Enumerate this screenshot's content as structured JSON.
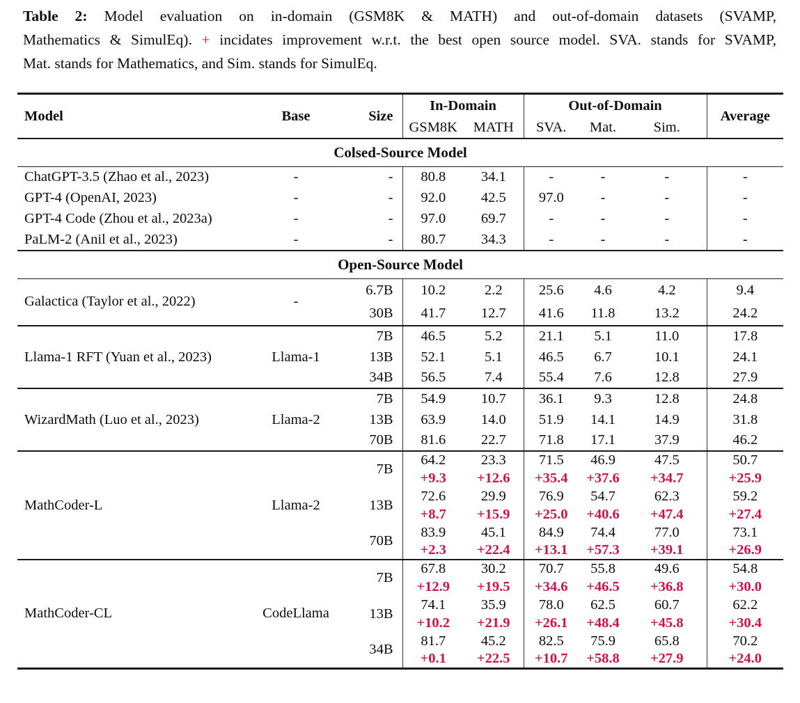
{
  "colors": {
    "accent_red": "#d2114b",
    "rule_black": "#1a1a1a"
  },
  "caption": {
    "tag": "Table 2:",
    "line1": "Model evaluation on in-domain (GSM8K & MATH) and out-of-domain datasets (SVAMP,",
    "line2_pre": "Mathematics & SimulEq). ",
    "plus": "+",
    "line2_post": " incidates improvement w.r.t. the best open source model. SVA. stands for SVAMP,",
    "line3": "Mat. stands for Mathematics, and Sim. stands for SimulEq."
  },
  "table": {
    "header": {
      "model": "Model",
      "base": "Base",
      "size": "Size",
      "in_domain": "In-Domain",
      "out_of_domain": "Out-of-Domain",
      "sub": [
        "GSM8K",
        "MATH",
        "SVA.",
        "Mat.",
        "Sim."
      ],
      "average": "Average"
    },
    "sections": [
      {
        "title": "Colsed-Source Model",
        "separators": false,
        "groups": [
          {
            "model": "ChatGPT-3.5 (Zhao et al., 2023)",
            "base": "-",
            "rows": [
              {
                "size": "-",
                "values": [
                  "80.8",
                  "34.1",
                  "-",
                  "-",
                  "-",
                  "-"
                ]
              }
            ]
          },
          {
            "model": "GPT-4 (OpenAI, 2023)",
            "base": "-",
            "rows": [
              {
                "size": "-",
                "values": [
                  "92.0",
                  "42.5",
                  "97.0",
                  "-",
                  "-",
                  "-"
                ]
              }
            ]
          },
          {
            "model": "GPT-4 Code (Zhou et al., 2023a)",
            "base": "-",
            "rows": [
              {
                "size": "-",
                "values": [
                  "97.0",
                  "69.7",
                  "-",
                  "-",
                  "-",
                  "-"
                ]
              }
            ]
          },
          {
            "model": "PaLM-2 (Anil et al., 2023)",
            "base": "-",
            "rows": [
              {
                "size": "-",
                "values": [
                  "80.7",
                  "34.3",
                  "-",
                  "-",
                  "-",
                  "-"
                ]
              }
            ]
          }
        ]
      },
      {
        "title": "Open-Source Model",
        "separators": true,
        "groups": [
          {
            "model": "Galactica (Taylor et al., 2022)",
            "base": "-",
            "rows": [
              {
                "size": "6.7B",
                "values": [
                  "10.2",
                  "2.2",
                  "25.6",
                  "4.6",
                  "4.2",
                  "9.4"
                ]
              },
              {
                "size": "30B",
                "values": [
                  "41.7",
                  "12.7",
                  "41.6",
                  "11.8",
                  "13.2",
                  "24.2"
                ]
              }
            ]
          },
          {
            "model": "Llama-1 RFT (Yuan et al., 2023)",
            "base": "Llama-1",
            "rows": [
              {
                "size": "7B",
                "values": [
                  "46.5",
                  "5.2",
                  "21.1",
                  "5.1",
                  "11.0",
                  "17.8"
                ]
              },
              {
                "size": "13B",
                "values": [
                  "52.1",
                  "5.1",
                  "46.5",
                  "6.7",
                  "10.1",
                  "24.1"
                ]
              },
              {
                "size": "34B",
                "values": [
                  "56.5",
                  "7.4",
                  "55.4",
                  "7.6",
                  "12.8",
                  "27.9"
                ]
              }
            ]
          },
          {
            "model": "WizardMath (Luo et al., 2023)",
            "base": "Llama-2",
            "rows": [
              {
                "size": "7B",
                "values": [
                  "54.9",
                  "10.7",
                  "36.1",
                  "9.3",
                  "12.8",
                  "24.8"
                ]
              },
              {
                "size": "13B",
                "values": [
                  "63.9",
                  "14.0",
                  "51.9",
                  "14.1",
                  "14.9",
                  "31.8"
                ]
              },
              {
                "size": "70B",
                "values": [
                  "81.6",
                  "22.7",
                  "71.8",
                  "17.1",
                  "37.9",
                  "46.2"
                ]
              }
            ]
          },
          {
            "model": "MathCoder-L",
            "base": "Llama-2",
            "rows": [
              {
                "size": "7B",
                "values": [
                  "64.2",
                  "23.3",
                  "71.5",
                  "46.9",
                  "47.5",
                  "50.7"
                ],
                "delta": [
                  "+9.3",
                  "+12.6",
                  "+35.4",
                  "+37.6",
                  "+34.7",
                  "+25.9"
                ]
              },
              {
                "size": "13B",
                "values": [
                  "72.6",
                  "29.9",
                  "76.9",
                  "54.7",
                  "62.3",
                  "59.2"
                ],
                "delta": [
                  "+8.7",
                  "+15.9",
                  "+25.0",
                  "+40.6",
                  "+47.4",
                  "+27.4"
                ]
              },
              {
                "size": "70B",
                "values": [
                  "83.9",
                  "45.1",
                  "84.9",
                  "74.4",
                  "77.0",
                  "73.1"
                ],
                "delta": [
                  "+2.3",
                  "+22.4",
                  "+13.1",
                  "+57.3",
                  "+39.1",
                  "+26.9"
                ]
              }
            ]
          },
          {
            "model": "MathCoder-CL",
            "base": "CodeLlama",
            "rows": [
              {
                "size": "7B",
                "values": [
                  "67.8",
                  "30.2",
                  "70.7",
                  "55.8",
                  "49.6",
                  "54.8"
                ],
                "delta": [
                  "+12.9",
                  "+19.5",
                  "+34.6",
                  "+46.5",
                  "+36.8",
                  "+30.0"
                ]
              },
              {
                "size": "13B",
                "values": [
                  "74.1",
                  "35.9",
                  "78.0",
                  "62.5",
                  "60.7",
                  "62.2"
                ],
                "delta": [
                  "+10.2",
                  "+21.9",
                  "+26.1",
                  "+48.4",
                  "+45.8",
                  "+30.4"
                ]
              },
              {
                "size": "34B",
                "values": [
                  "81.7",
                  "45.2",
                  "82.5",
                  "75.9",
                  "65.8",
                  "70.2"
                ],
                "delta": [
                  "+0.1",
                  "+22.5",
                  "+10.7",
                  "+58.8",
                  "+27.9",
                  "+24.0"
                ]
              }
            ]
          }
        ]
      }
    ]
  }
}
